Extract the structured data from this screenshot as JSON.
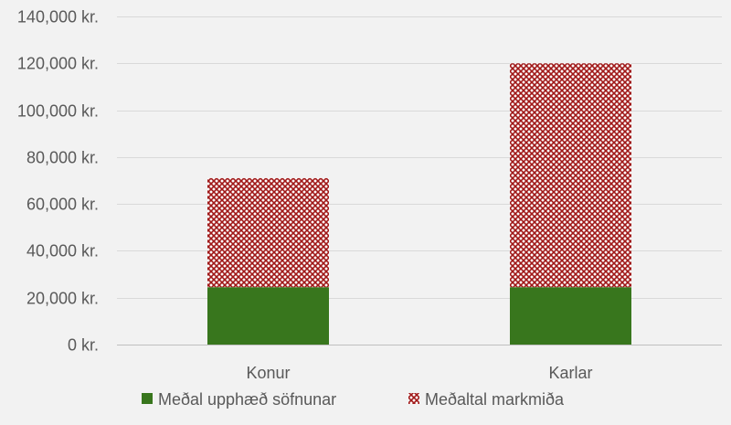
{
  "chart_data": {
    "type": "bar",
    "stacked": true,
    "categories": [
      "Konur",
      "Karlar"
    ],
    "series": [
      {
        "name": "Meðal upphæð söfnunar",
        "values": [
          24500,
          24500
        ],
        "color": "#38761d",
        "pattern": "solid"
      },
      {
        "name": "Meðaltal markmiða",
        "values": [
          46500,
          95500
        ],
        "color": "#a01818",
        "pattern": "diagonal-crosshatch"
      }
    ],
    "ylim": [
      0,
      140000
    ],
    "y_ticks": [
      0,
      20000,
      40000,
      60000,
      80000,
      100000,
      120000,
      140000
    ],
    "y_tick_labels": [
      "0 kr.",
      "20,000 kr.",
      "40,000 kr.",
      "60,000 kr.",
      "80,000 kr.",
      "100,000 kr.",
      "120,000 kr.",
      "140,000 kr."
    ],
    "grid": true,
    "legend_position": "bottom",
    "title": "",
    "xlabel": "",
    "ylabel": ""
  }
}
